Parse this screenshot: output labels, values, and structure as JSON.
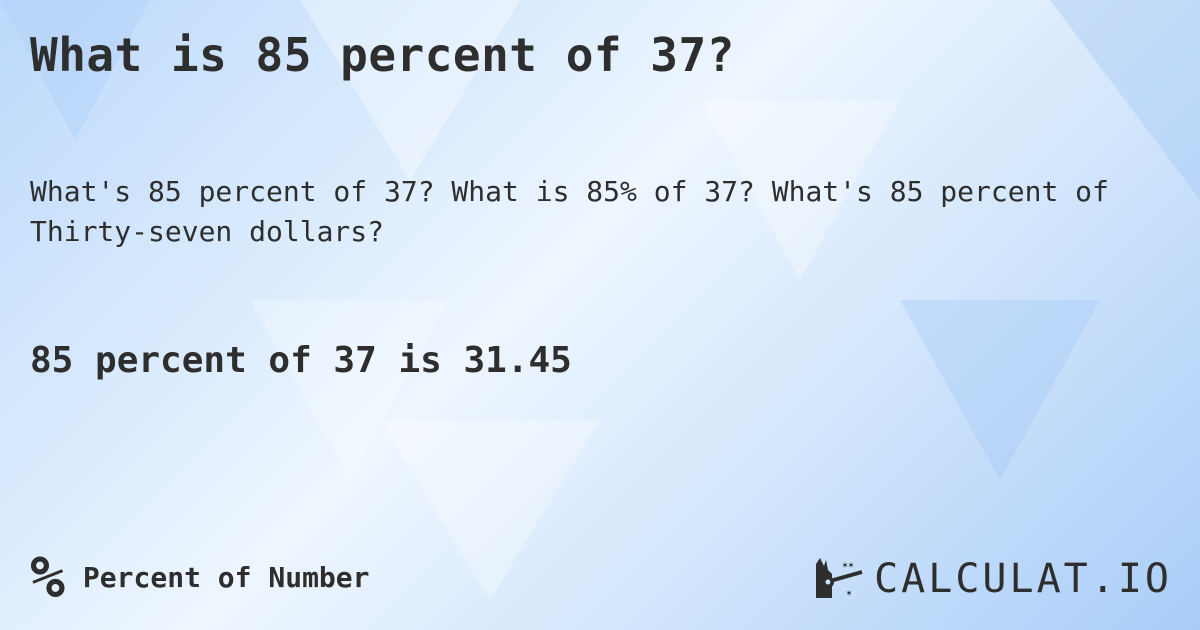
{
  "title": "What is 85 percent of 37?",
  "subtitle": "What's 85 percent of 37? What is 85% of 37? What's 85 percent of Thirty-seven dollars?",
  "answer": "85 percent of 37 is 31.45",
  "footer": {
    "icon": "percent-icon",
    "icon_glyph": "%",
    "category": "Percent of Number"
  },
  "logo": {
    "text": "CALCULAT.IO",
    "icon": "magic-hand-icon"
  }
}
